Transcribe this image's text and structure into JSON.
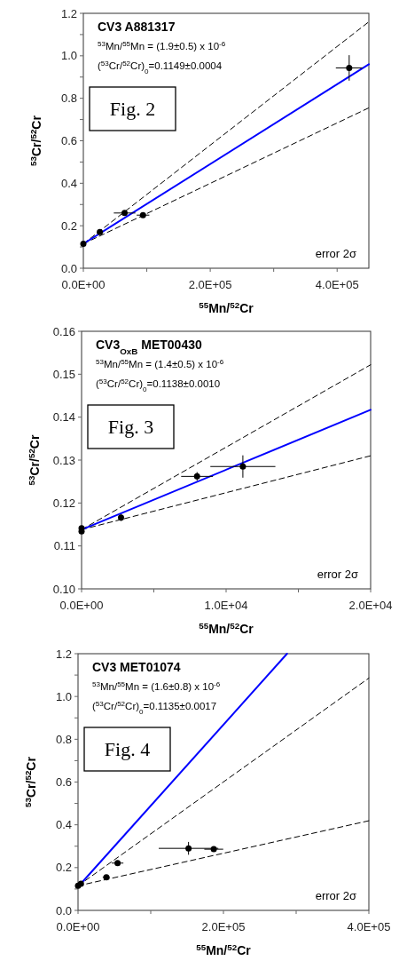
{
  "chart_data": [
    {
      "type": "scatter",
      "title": "CV3 A881317",
      "xlabel": "$^{55}$Mn/$^{52}$Cr",
      "ylabel": "$^{53}$Cr/$^{52}$Cr",
      "annotations": [
        "$^{53}$Mn/$^{55}$Mn = (1.9±0.5) x 10$^{-6}$",
        "($^{53}$Cr/$^{52}$Cr)$_{0}$=0.1149±0.0004",
        "Fig. 2",
        "error 2σ"
      ],
      "xlim": [
        0,
        450000
      ],
      "ylim": [
        0,
        1.2
      ],
      "xticks": [
        {
          "value": 0,
          "label": "0.0E+00"
        },
        {
          "value": 100000,
          "label": null
        },
        {
          "value": 200000,
          "label": "2.0E+05"
        },
        {
          "value": 300000,
          "label": null
        },
        {
          "value": 400000,
          "label": "4.0E+05"
        }
      ],
      "yticks": [
        {
          "value": 0,
          "label": "0.0"
        },
        {
          "value": 0.1,
          "label": null
        },
        0.2,
        {
          "value": 0.3,
          "label": null
        },
        0.4,
        {
          "value": 0.5,
          "label": null
        },
        0.6,
        {
          "value": 0.7,
          "label": null
        },
        0.8,
        {
          "value": 0.9,
          "label": null
        },
        {
          "value": 1,
          "label": "1.0"
        },
        {
          "value": 1.1,
          "label": null
        },
        1.2
      ],
      "marker": "circle",
      "series": [
        {
          "type": "line",
          "color": "#000000",
          "line_style": "dashed",
          "marker": "none",
          "x": [
            0,
            450000
          ],
          "values": [
            0.115,
            1.16
          ]
        },
        {
          "type": "line",
          "color": "#000000",
          "line_style": "dashed",
          "marker": "none",
          "x": [
            0,
            450000
          ],
          "values": [
            0.115,
            0.755
          ]
        },
        {
          "type": "line",
          "color": "#0000ff",
          "line_style": "solid",
          "marker": "none",
          "x": [
            0,
            450000
          ],
          "values": [
            0.115,
            0.96
          ]
        },
        {
          "type": "scatter",
          "color": "#000000",
          "x": [
            0,
            26000,
            65000,
            94000,
            419000
          ],
          "values": [
            0.115,
            0.17,
            0.26,
            0.25,
            0.943
          ],
          "xerrors": [
            null,
            null,
            17000,
            10000,
            21000
          ],
          "errors": [
            null,
            null,
            null,
            null,
            0.06
          ]
        }
      ]
    },
    {
      "type": "scatter",
      "title": "CV3$_{OxB}$ MET00430",
      "xlabel": "$^{55}$Mn/$^{52}$Cr",
      "ylabel": "$^{53}$Cr/$^{52}$Cr",
      "annotations": [
        "$^{53}$Mn/$^{55}$Mn = (1.4±0.5) x 10$^{-6}$",
        "($^{53}$Cr/$^{52}$Cr)$_{0}$=0.1138±0.0010",
        "Fig. 3",
        "error 2σ"
      ],
      "xlim": [
        0,
        20000
      ],
      "ylim": [
        0.1,
        0.16
      ],
      "xticks": [
        {
          "value": 0,
          "label": "0.0E+00"
        },
        {
          "value": 5000,
          "label": null
        },
        {
          "value": 10000,
          "label": "1.0E+04"
        },
        {
          "value": 15000,
          "label": null
        },
        {
          "value": 20000,
          "label": "2.0E+04"
        }
      ],
      "yticks": [
        {
          "value": 0.1,
          "label": "0.10"
        },
        0.11,
        0.12,
        0.13,
        0.14,
        0.15,
        0.16
      ],
      "marker": "circle",
      "series": [
        {
          "type": "line",
          "color": "#000000",
          "line_style": "dashed",
          "marker": "none",
          "x": [
            0,
            20000
          ],
          "values": [
            0.1138,
            0.1522
          ]
        },
        {
          "type": "line",
          "color": "#000000",
          "line_style": "dashed",
          "marker": "none",
          "x": [
            0,
            20000
          ],
          "values": [
            0.1138,
            0.131
          ]
        },
        {
          "type": "line",
          "color": "#0000ff",
          "line_style": "solid",
          "marker": "none",
          "x": [
            0,
            20000
          ],
          "values": [
            0.1138,
            0.1417
          ]
        },
        {
          "type": "scatter",
          "color": "#000000",
          "x": [
            0,
            0,
            2730,
            7990,
            11160
          ],
          "values": [
            0.1141,
            0.1134,
            0.1166,
            0.1262,
            0.1285
          ],
          "xerrors": [
            null,
            null,
            null,
            1100,
            2250
          ],
          "errors": [
            null,
            null,
            0.0008,
            0.001,
            0.0026
          ]
        }
      ]
    },
    {
      "type": "scatter",
      "title": "CV3 MET01074",
      "xlabel": "$^{55}$Mn/$^{52}$Cr",
      "ylabel": "$^{53}$Cr/$^{52}$Cr",
      "annotations": [
        "$^{53}$Mn/$^{55}$Mn = (1.6±0.8) x 10$^{-6}$",
        "($^{53}$Cr/$^{52}$Cr)$_{0}$=0.1135±0.0017",
        "Fig. 4",
        "error 2σ"
      ],
      "xlim": [
        0,
        400000
      ],
      "ylim": [
        0,
        1.2
      ],
      "xticks": [
        {
          "value": 0,
          "label": "0.0E+00"
        },
        {
          "value": 100000,
          "label": null
        },
        {
          "value": 200000,
          "label": "2.0E+05"
        },
        {
          "value": 300000,
          "label": null
        },
        {
          "value": 400000,
          "label": "4.0E+05"
        }
      ],
      "yticks": [
        {
          "value": 0,
          "label": "0.0"
        },
        {
          "value": 0.1,
          "label": null
        },
        0.2,
        {
          "value": 0.3,
          "label": null
        },
        0.4,
        {
          "value": 0.5,
          "label": null
        },
        0.6,
        {
          "value": 0.7,
          "label": null
        },
        0.8,
        {
          "value": 0.9,
          "label": null
        },
        {
          "value": 1,
          "label": "1.0"
        },
        {
          "value": 1.1,
          "label": null
        },
        1.2
      ],
      "marker": "circle",
      "series": [
        {
          "type": "line",
          "color": "#000000",
          "line_style": "dashed",
          "marker": "none",
          "x": [
            0,
            400000
          ],
          "values": [
            0.115,
            1.086
          ]
        },
        {
          "type": "line",
          "color": "#000000",
          "line_style": "dashed",
          "marker": "none",
          "x": [
            0,
            400000
          ],
          "values": [
            0.115,
            0.419
          ]
        },
        {
          "type": "line",
          "color": "#0000ff",
          "line_style": "solid",
          "marker": "none",
          "x": [
            0,
            287500
          ],
          "values": [
            0.11,
            1.2
          ]
        },
        {
          "type": "scatter",
          "color": "#000000",
          "x": [
            0,
            4000,
            39000,
            54400,
            152000,
            186700
          ],
          "values": [
            0.115,
            0.125,
            0.155,
            0.221,
            0.29,
            0.286
          ],
          "xerrors": [
            null,
            null,
            5000,
            8000,
            41000,
            13000
          ],
          "errors": [
            null,
            null,
            null,
            null,
            0.03,
            null
          ]
        }
      ]
    }
  ]
}
